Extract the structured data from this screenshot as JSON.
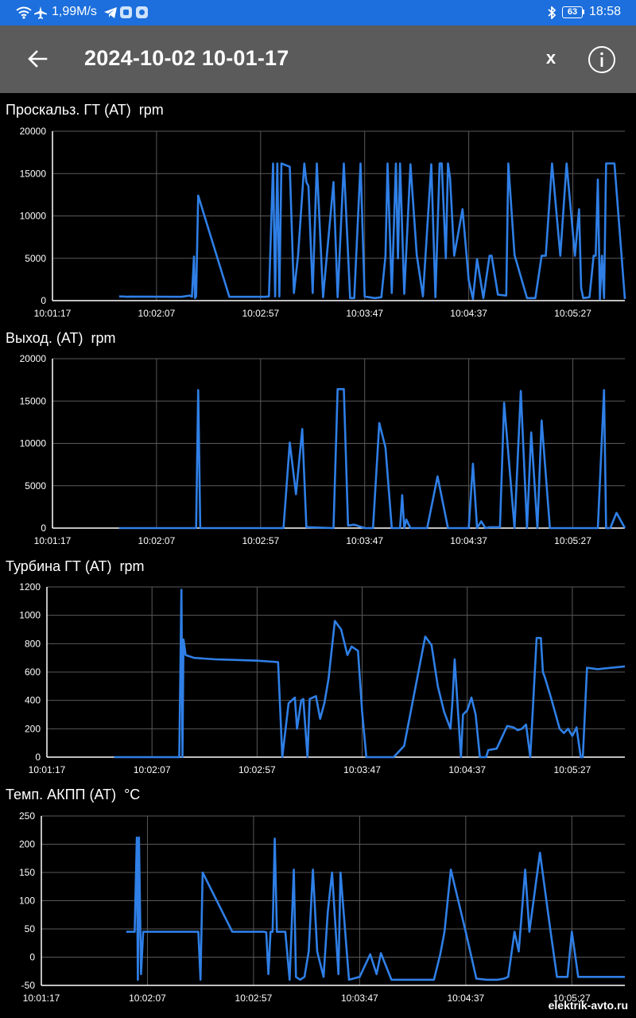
{
  "status_bar": {
    "speed": "1,99M/s",
    "battery": "63",
    "time": "18:58"
  },
  "app_bar": {
    "title": "2024-10-02 10-01-17",
    "close_label": "x"
  },
  "colors": {
    "line": "#2f7fe6",
    "grid": "#5a5a5a",
    "appbar": "#5b5b5b",
    "statusbar": "#1c6fdc"
  },
  "watermark": "elektrik-avto.ru",
  "chart_data": [
    {
      "type": "line",
      "title": "Проскальз. ГТ (АТ)",
      "unit": "rpm",
      "ylim": [
        0,
        20000
      ],
      "yticks": [
        "20000",
        "15000",
        "10000",
        "5000",
        "0"
      ],
      "xlim": [
        0,
        275
      ],
      "xticks": [
        "10:01:17",
        "10:02:07",
        "10:02:57",
        "10:03:47",
        "10:04:37",
        "10:05:27"
      ],
      "grid": true,
      "x": [
        32,
        35,
        36,
        37,
        62,
        66,
        67,
        68,
        68.5,
        69,
        70,
        85,
        100,
        102,
        104,
        106,
        107,
        108,
        109,
        110,
        114,
        116,
        118,
        121,
        122,
        123,
        125,
        127,
        130,
        135,
        137,
        140,
        143,
        145,
        148,
        150,
        152,
        155,
        158,
        160,
        161,
        163,
        165,
        166,
        167,
        169,
        172,
        175,
        178,
        182,
        184,
        186,
        187,
        189,
        190,
        191,
        193,
        197,
        200,
        202,
        204,
        207,
        210,
        211,
        214,
        218,
        219,
        222,
        228,
        232,
        235,
        237,
        240,
        244,
        247,
        251,
        253,
        254,
        255,
        258,
        260,
        261,
        262,
        263,
        264,
        265,
        266,
        270,
        275
      ],
      "y": [
        500,
        480,
        450,
        480,
        450,
        600,
        450,
        5200,
        300,
        500,
        12400,
        450,
        450,
        450,
        500,
        16200,
        500,
        16200,
        500,
        16200,
        15800,
        900,
        5300,
        16200,
        14000,
        13500,
        900,
        16200,
        400,
        14000,
        400,
        16200,
        300,
        300,
        16200,
        500,
        400,
        300,
        400,
        5300,
        16200,
        900,
        16200,
        5000,
        16200,
        800,
        16100,
        5400,
        500,
        16100,
        400,
        16200,
        16200,
        5000,
        16200,
        14500,
        5300,
        10800,
        2400,
        200,
        4900,
        300,
        5300,
        5300,
        700,
        600,
        16200,
        5400,
        300,
        300,
        5300,
        5300,
        16200,
        5300,
        16200,
        5300,
        10800,
        1500,
        300,
        400,
        5300,
        5300,
        14300,
        200,
        5300,
        300,
        16200,
        16200,
        200
      ]
    },
    {
      "type": "line",
      "title": "Выход. (АТ)",
      "unit": "rpm",
      "ylim": [
        0,
        20000
      ],
      "yticks": [
        "20000",
        "15000",
        "10000",
        "5000",
        "0"
      ],
      "xlim": [
        0,
        275
      ],
      "xticks": [
        "10:01:17",
        "10:02:07",
        "10:02:57",
        "10:03:47",
        "10:04:37",
        "10:05:27"
      ],
      "grid": true,
      "x": [
        32,
        69,
        70,
        71,
        111,
        114,
        117,
        120,
        122,
        123,
        135,
        137,
        140,
        142,
        145,
        150,
        154,
        157,
        160,
        163,
        166,
        167,
        168,
        169,
        170,
        172,
        180,
        185,
        190,
        192,
        197,
        200,
        202,
        204,
        206,
        208,
        210,
        215,
        217,
        222,
        225,
        228,
        230,
        233,
        235,
        239,
        240,
        243,
        245,
        262,
        265,
        266,
        268,
        271,
        275
      ],
      "y": [
        0,
        0,
        16300,
        0,
        0,
        10100,
        4000,
        11700,
        100,
        100,
        0,
        16400,
        16400,
        300,
        400,
        0,
        0,
        12400,
        9500,
        0,
        0,
        0,
        3900,
        0,
        1000,
        0,
        0,
        6100,
        0,
        0,
        0,
        0,
        7600,
        0,
        800,
        0,
        100,
        100,
        14800,
        0,
        16200,
        0,
        11300,
        0,
        12700,
        0,
        0,
        0,
        0,
        0,
        16300,
        0,
        0,
        1800,
        0
      ]
    },
    {
      "type": "line",
      "title": "Турбина ГТ (АТ)",
      "unit": "rpm",
      "ylim": [
        0,
        1200
      ],
      "yticks": [
        "1200",
        "1000",
        "800",
        "600",
        "400",
        "200",
        "0"
      ],
      "xlim": [
        0,
        275
      ],
      "xticks": [
        "10:01:17",
        "10:02:07",
        "10:02:57",
        "10:03:47",
        "10:04:37",
        "10:05:27"
      ],
      "grid": true,
      "x": [
        32,
        63,
        64,
        64.5,
        65,
        66,
        70,
        80,
        90,
        100,
        110,
        112,
        115,
        118,
        119,
        121,
        122,
        124,
        125,
        128,
        130,
        132,
        134,
        137,
        140,
        143,
        145,
        148,
        150,
        152,
        153,
        158,
        165,
        170,
        180,
        183,
        186,
        189,
        192,
        193,
        194,
        197,
        198,
        200,
        202,
        204,
        206,
        209,
        210,
        214,
        219,
        222,
        224,
        226,
        228,
        230,
        233,
        235,
        236,
        237,
        240,
        244,
        246,
        248,
        250,
        251,
        252,
        254,
        255,
        257,
        262,
        275
      ],
      "y": [
        0,
        0,
        1180,
        0,
        830,
        720,
        700,
        690,
        685,
        680,
        670,
        0,
        380,
        420,
        200,
        400,
        410,
        0,
        410,
        430,
        270,
        380,
        550,
        960,
        900,
        720,
        780,
        750,
        320,
        0,
        0,
        0,
        0,
        80,
        850,
        790,
        500,
        320,
        200,
        400,
        690,
        0,
        300,
        330,
        420,
        300,
        0,
        0,
        50,
        60,
        220,
        210,
        190,
        200,
        230,
        0,
        840,
        840,
        600,
        560,
        410,
        200,
        170,
        200,
        150,
        180,
        210,
        0,
        0,
        630,
        620,
        640
      ]
    },
    {
      "type": "line",
      "title": "Темп. АКПП (АТ)",
      "unit": "°C",
      "ylim": [
        -50,
        250
      ],
      "yticks": [
        "250",
        "200",
        "150",
        "100",
        "50",
        "0",
        "-50"
      ],
      "xlim": [
        0,
        275
      ],
      "xticks": [
        "10:01:17",
        "10:02:07",
        "10:02:57",
        "10:03:47",
        "10:04:37",
        "10:05:27"
      ],
      "grid": true,
      "x": [
        40,
        44,
        45,
        45.5,
        46,
        47,
        48,
        49,
        50,
        70,
        74,
        75,
        76,
        90,
        105,
        106,
        107,
        108,
        109,
        110,
        111,
        113,
        115,
        117,
        119,
        120,
        122,
        124,
        126,
        128,
        130,
        133,
        135,
        137,
        140,
        141,
        145,
        150,
        155,
        158,
        160,
        165,
        170,
        175,
        180,
        185,
        188,
        190,
        193,
        200,
        205,
        210,
        215,
        218,
        220,
        223,
        225,
        228,
        230,
        235,
        240,
        243,
        245,
        247,
        248,
        250,
        253,
        256,
        258,
        260,
        262,
        265,
        268,
        272,
        275
      ],
      "y": [
        45,
        45,
        212,
        -40,
        212,
        -30,
        45,
        45,
        45,
        45,
        45,
        -40,
        150,
        45,
        45,
        44,
        -30,
        45,
        45,
        210,
        45,
        45,
        45,
        -40,
        155,
        -35,
        -40,
        -35,
        10,
        155,
        10,
        -35,
        80,
        150,
        -30,
        150,
        -40,
        -35,
        5,
        -30,
        7,
        -40,
        -40,
        -40,
        -40,
        -40,
        5,
        45,
        155,
        45,
        -38,
        -40,
        -40,
        -38,
        -35,
        45,
        10,
        155,
        45,
        185,
        45,
        -35,
        -35,
        -35,
        -35,
        45,
        -35,
        -35,
        -35,
        -35,
        -35,
        -35,
        -35,
        -35,
        -35
      ]
    }
  ]
}
